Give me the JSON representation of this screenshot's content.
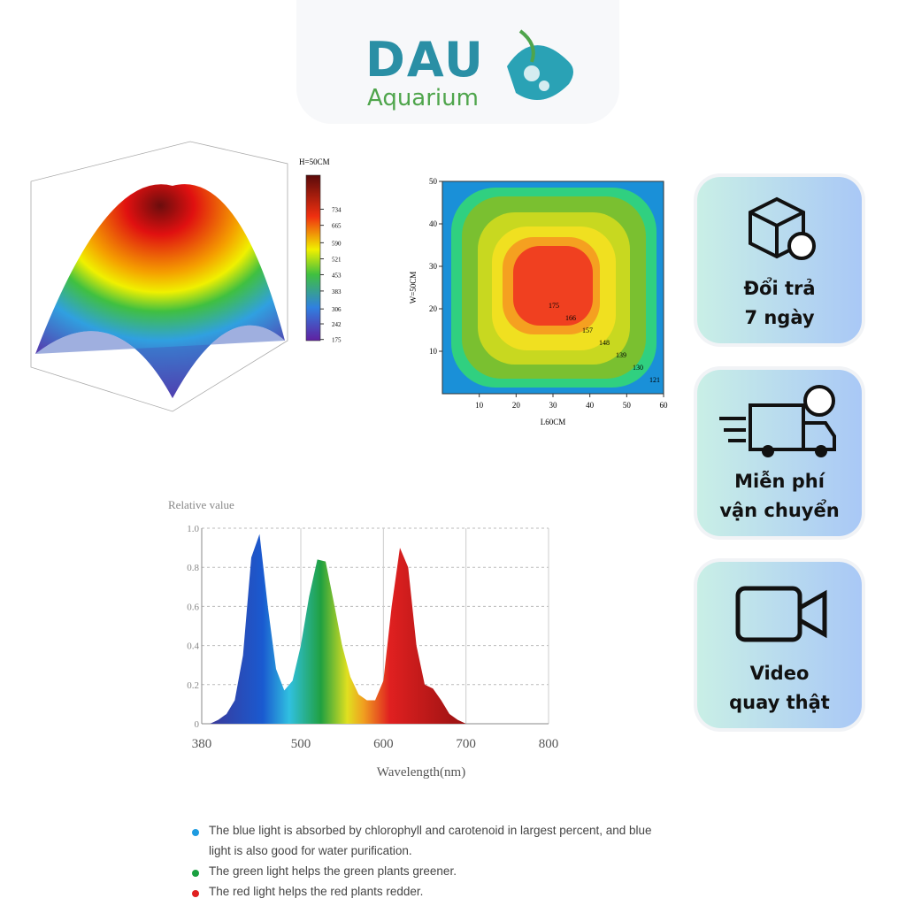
{
  "logo": {
    "brand": "DAU",
    "sub": "Aquarium"
  },
  "badges": [
    {
      "lines": [
        "Đổi trả",
        "7 ngày"
      ]
    },
    {
      "lines": [
        "Miễn phí",
        "vận chuyển"
      ]
    },
    {
      "lines": [
        "Video",
        "quay thật"
      ]
    }
  ],
  "notes": [
    "The blue light is absorbed by chlorophyll and carotenoid in largest percent, and blue light is also good for water purification.",
    "The green light helps the green plants greener.",
    "The red light helps the red plants redder."
  ],
  "chart_data": [
    {
      "type": "surface",
      "title": "H=50CM",
      "clim": [
        170,
        880
      ],
      "cticks": [
        175,
        242,
        306,
        383,
        453,
        521,
        590,
        665,
        734
      ]
    },
    {
      "type": "contour",
      "xlabel": "L60CM",
      "ylabel": "W=50CM",
      "xlim": [
        0,
        60
      ],
      "ylim": [
        0,
        50
      ],
      "xticks": [
        10,
        20,
        30,
        40,
        50,
        60
      ],
      "yticks": [
        10,
        20,
        30,
        40,
        50
      ],
      "levels": [
        175,
        166,
        157,
        148,
        139,
        130,
        121
      ]
    },
    {
      "type": "area",
      "ylabel": "Relative value",
      "xlabel": "Wavelength(nm)",
      "xlim": [
        380,
        800
      ],
      "ylim": [
        0,
        1
      ],
      "xticks": [
        380,
        500,
        600,
        700,
        800
      ],
      "yticks": [
        0,
        0.2,
        0.4,
        0.6,
        0.8,
        {
          "value": 1,
          "label": "1.0"
        }
      ],
      "grid": true,
      "x": [
        390,
        400,
        410,
        420,
        430,
        440,
        450,
        460,
        470,
        480,
        490,
        500,
        510,
        520,
        530,
        540,
        550,
        560,
        570,
        580,
        590,
        600,
        610,
        620,
        630,
        640,
        650,
        660,
        670,
        680,
        690,
        700,
        710
      ],
      "values": [
        0,
        0.02,
        0.05,
        0.12,
        0.35,
        0.85,
        0.97,
        0.6,
        0.28,
        0.17,
        0.22,
        0.4,
        0.65,
        0.84,
        0.83,
        0.62,
        0.4,
        0.24,
        0.15,
        0.12,
        0.12,
        0.22,
        0.6,
        0.9,
        0.8,
        0.4,
        0.2,
        0.18,
        0.12,
        0.05,
        0.02,
        0,
        0
      ]
    }
  ]
}
